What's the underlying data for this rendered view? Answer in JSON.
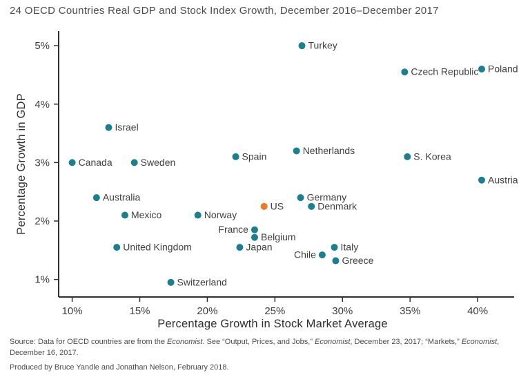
{
  "chart_data": {
    "type": "scatter",
    "title": "24 OECD Countries Real GDP and Stock Index Growth, December 2016–December 2017",
    "xlabel": "Percentage Growth in Stock Market Average",
    "ylabel": "Percentage Growth in GDP",
    "xlim": [
      9.0,
      42.7
    ],
    "ylim": [
      0.7,
      5.25
    ],
    "x_ticks": [
      10,
      15,
      20,
      25,
      30,
      35,
      40
    ],
    "x_tick_labels": [
      "10%",
      "15%",
      "20%",
      "25%",
      "30%",
      "35%",
      "40%"
    ],
    "y_ticks": [
      1,
      2,
      3,
      4,
      5
    ],
    "y_tick_labels": [
      "1%",
      "2%",
      "3%",
      "4%",
      "5%"
    ],
    "grid": false,
    "legend": "none",
    "colors": {
      "point": "#1a7f8e",
      "highlight": "#ee7c26",
      "axis": "#2f2f2f"
    },
    "points": [
      {
        "label": "Turkey",
        "x": 27.0,
        "y": 5.0,
        "label_side": "right",
        "highlight": false
      },
      {
        "label": "Czech Republic",
        "x": 34.6,
        "y": 4.55,
        "label_side": "right",
        "highlight": false
      },
      {
        "label": "Poland",
        "x": 40.3,
        "y": 4.6,
        "label_side": "right",
        "highlight": false
      },
      {
        "label": "Israel",
        "x": 12.7,
        "y": 3.6,
        "label_side": "right",
        "highlight": false
      },
      {
        "label": "Netherlands",
        "x": 26.6,
        "y": 3.2,
        "label_side": "right",
        "highlight": false
      },
      {
        "label": "Spain",
        "x": 22.1,
        "y": 3.1,
        "label_side": "right",
        "highlight": false
      },
      {
        "label": "S. Korea",
        "x": 34.8,
        "y": 3.1,
        "label_side": "right",
        "highlight": false
      },
      {
        "label": "Canada",
        "x": 10.0,
        "y": 3.0,
        "label_side": "right",
        "highlight": false
      },
      {
        "label": "Sweden",
        "x": 14.6,
        "y": 3.0,
        "label_side": "right",
        "highlight": false
      },
      {
        "label": "Austria",
        "x": 40.3,
        "y": 2.7,
        "label_side": "right",
        "highlight": false
      },
      {
        "label": "Australia",
        "x": 11.8,
        "y": 2.4,
        "label_side": "right",
        "highlight": false
      },
      {
        "label": "Germany",
        "x": 26.9,
        "y": 2.4,
        "label_side": "right",
        "highlight": false
      },
      {
        "label": "US",
        "x": 24.2,
        "y": 2.25,
        "label_side": "right",
        "highlight": true
      },
      {
        "label": "Denmark",
        "x": 27.7,
        "y": 2.25,
        "label_side": "right",
        "highlight": false
      },
      {
        "label": "Mexico",
        "x": 13.9,
        "y": 2.1,
        "label_side": "right",
        "highlight": false
      },
      {
        "label": "Norway",
        "x": 19.3,
        "y": 2.1,
        "label_side": "right",
        "highlight": false
      },
      {
        "label": "France",
        "x": 23.5,
        "y": 1.85,
        "label_side": "left",
        "highlight": false
      },
      {
        "label": "Belgium",
        "x": 23.5,
        "y": 1.72,
        "label_side": "right",
        "highlight": false
      },
      {
        "label": "United Kingdom",
        "x": 13.3,
        "y": 1.55,
        "label_side": "right",
        "highlight": false
      },
      {
        "label": "Japan",
        "x": 22.4,
        "y": 1.55,
        "label_side": "right",
        "highlight": false
      },
      {
        "label": "Italy",
        "x": 29.4,
        "y": 1.55,
        "label_side": "right",
        "highlight": false
      },
      {
        "label": "Chile",
        "x": 28.5,
        "y": 1.42,
        "label_side": "left",
        "highlight": false
      },
      {
        "label": "Greece",
        "x": 29.5,
        "y": 1.32,
        "label_side": "right",
        "highlight": false
      },
      {
        "label": "Switzerland",
        "x": 17.3,
        "y": 0.95,
        "label_side": "right",
        "highlight": false
      }
    ]
  },
  "source": {
    "line1_segments": [
      {
        "text": "Source: Data for OECD countries are from the ",
        "italic": false
      },
      {
        "text": "Economist",
        "italic": true
      },
      {
        "text": ". See “Output, Prices, and Jobs,” ",
        "italic": false
      },
      {
        "text": "Economist",
        "italic": true
      },
      {
        "text": ", December 23, 2017; “Markets,” ",
        "italic": false
      },
      {
        "text": "Economist",
        "italic": true
      },
      {
        "text": ",",
        "italic": false
      }
    ],
    "line2": "December 16, 2017.",
    "line3": "Produced by Bruce Yandle and Jonathan Nelson, February 2018."
  }
}
